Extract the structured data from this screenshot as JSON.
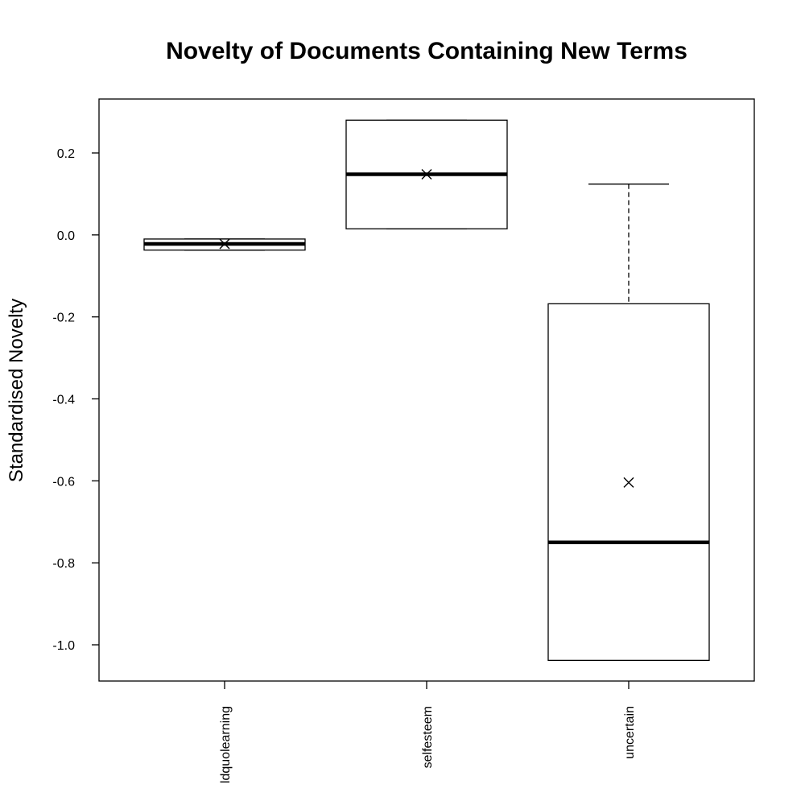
{
  "chart_data": {
    "type": "box",
    "title": "Novelty of Documents Containing New Terms",
    "xlabel": "",
    "ylabel": "Standardised Novelty",
    "ylim": [
      -1.09,
      0.33
    ],
    "yticks": [
      -1.0,
      -0.8,
      -0.6,
      -0.4,
      -0.2,
      0.0,
      0.2
    ],
    "ytick_labels": [
      "-1.0",
      "-0.8",
      "-0.6",
      "-0.4",
      "-0.2",
      "0.0",
      "0.2"
    ],
    "categories": [
      "ldquolearning",
      "selfesteem",
      "uncertain"
    ],
    "boxes": [
      {
        "category": "ldquolearning",
        "whisker_low": -0.037,
        "q1": -0.037,
        "median": -0.022,
        "q3": -0.01,
        "whisker_high": -0.01,
        "mean": -0.022
      },
      {
        "category": "selfesteem",
        "whisker_low": 0.015,
        "q1": 0.015,
        "median": 0.148,
        "q3": 0.28,
        "whisker_high": 0.28,
        "mean": 0.148
      },
      {
        "category": "uncertain",
        "whisker_low": -1.038,
        "q1": -1.038,
        "median": -0.75,
        "q3": -0.168,
        "whisker_high": 0.124,
        "mean": -0.604
      }
    ],
    "grid": false,
    "legend": "none"
  }
}
